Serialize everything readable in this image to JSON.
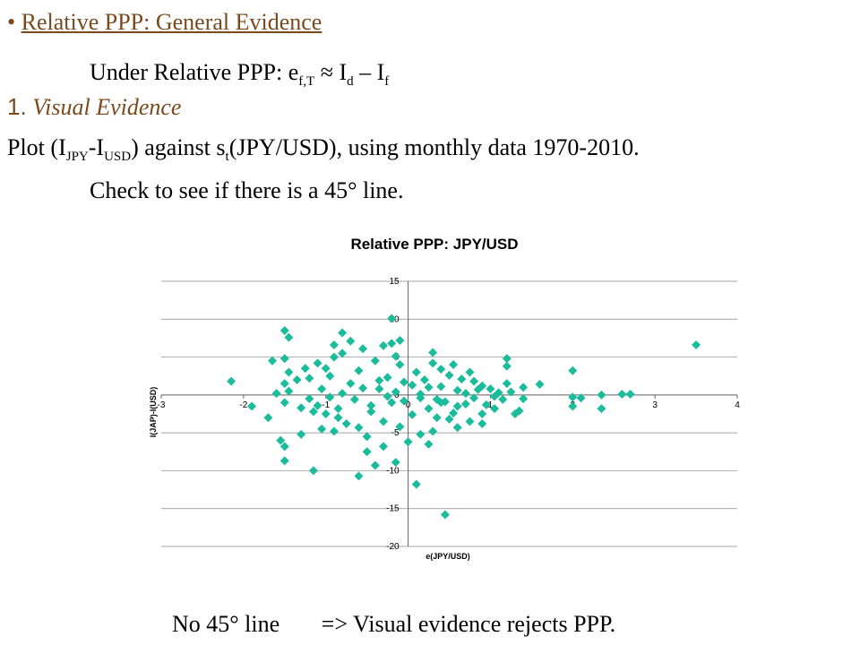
{
  "slide": {
    "bullet": "•",
    "heading": "Relative PPP: General Evidence",
    "line2_pre": "Under Relative PPP: e",
    "line2_sub1": "f,T",
    "line2_approx": " ≈ I",
    "line2_sub2": "d",
    "line2_minus": " – I",
    "line2_sub3": "f",
    "line3_num": "1.",
    "line3_text": "Visual Evidence",
    "line4_pre": "Plot (I",
    "line4_sub1": "JPY",
    "line4_mid": "-I",
    "line4_sub2": "USD",
    "line4_mid2": ") against s",
    "line4_sub3": "t",
    "line4_post": "(JPY/USD), using monthly data  1970-2010.",
    "line5": "Check to see if  there is a 45° line.",
    "conclusion_left": "No 45° line",
    "conclusion_right": "=> Visual evidence rejects PPP."
  },
  "colors": {
    "marker": "#1abc9c",
    "heading": "#7a4a1c"
  },
  "chart_data": {
    "type": "scatter",
    "title": "Relative PPP: JPY/USD",
    "xlabel": "e(JPY/USD)",
    "ylabel": "I(JAP)-I(USD)",
    "xlim": [
      -3,
      4
    ],
    "ylim": [
      -20,
      15
    ],
    "xticks": [
      "-3",
      "-2",
      "-1",
      "0",
      "1",
      "2",
      "3",
      "4"
    ],
    "yticks": [
      "15",
      "10",
      "5",
      "0",
      "-5",
      "-10",
      "-15",
      "-20"
    ],
    "grid": "horizontal",
    "series": [
      {
        "marker": "diamond",
        "points": [
          [
            3.5,
            6.6
          ],
          [
            2.7,
            0.1
          ],
          [
            2.6,
            0.1
          ],
          [
            2.35,
            0
          ],
          [
            2.35,
            -1.8
          ],
          [
            2.1,
            -0.4
          ],
          [
            2.0,
            -0.3
          ],
          [
            2.0,
            3.2
          ],
          [
            2.0,
            -1.5
          ],
          [
            1.6,
            1.4
          ],
          [
            1.4,
            1.0
          ],
          [
            1.4,
            -0.5
          ],
          [
            1.35,
            -2.1
          ],
          [
            1.2,
            4.8
          ],
          [
            1.2,
            3.8
          ],
          [
            1.25,
            0.4
          ],
          [
            1.15,
            -0.6
          ],
          [
            1.05,
            -0.2
          ],
          [
            0.9,
            -2.5
          ],
          [
            0.9,
            1.2
          ],
          [
            0.8,
            -0.4
          ],
          [
            0.75,
            -3.5
          ],
          [
            0.7,
            0.2
          ],
          [
            0.6,
            -1.5
          ],
          [
            0.5,
            -3.2
          ],
          [
            0.4,
            -1.0
          ],
          [
            0.3,
            -4.8
          ],
          [
            0.15,
            -5.2
          ],
          [
            0.1,
            -11.8
          ],
          [
            0.45,
            -15.8
          ],
          [
            0.0,
            -6.2
          ],
          [
            -0.1,
            7.2
          ],
          [
            -0.2,
            10.1
          ],
          [
            -0.3,
            6.5
          ],
          [
            -0.5,
            -7.5
          ],
          [
            -0.6,
            -10.7
          ],
          [
            -0.75,
            -3.8
          ],
          [
            -0.7,
            7.1
          ],
          [
            -0.8,
            5.5
          ],
          [
            -0.8,
            8.2
          ],
          [
            -0.9,
            5.0
          ],
          [
            -1.0,
            3.5
          ],
          [
            -1.05,
            -4.5
          ],
          [
            -1.15,
            -2.2
          ],
          [
            -1.1,
            -1.4
          ],
          [
            -1.2,
            -0.5
          ],
          [
            -1.3,
            -5.2
          ],
          [
            -1.15,
            -10.0
          ],
          [
            -1.3,
            -1.7
          ],
          [
            -1.45,
            3.0
          ],
          [
            -1.5,
            4.8
          ],
          [
            -1.5,
            -6.8
          ],
          [
            -1.55,
            -6.0
          ],
          [
            -1.6,
            0.2
          ],
          [
            -1.65,
            4.5
          ],
          [
            -1.7,
            -3.0
          ],
          [
            -1.5,
            -1.0
          ],
          [
            -1.45,
            0.5
          ],
          [
            -1.5,
            1.5
          ],
          [
            -1.2,
            2.2
          ],
          [
            -1.25,
            3.5
          ],
          [
            -1.0,
            -2.5
          ],
          [
            -0.9,
            -4.8
          ],
          [
            -1.5,
            8.5
          ],
          [
            -1.45,
            7.6
          ],
          [
            -1.5,
            -8.7
          ],
          [
            -1.9,
            -1.5
          ],
          [
            -2.15,
            1.8
          ],
          [
            -1.05,
            0.8
          ],
          [
            -0.95,
            2.5
          ],
          [
            -0.85,
            -1.8
          ],
          [
            -0.7,
            1.5
          ],
          [
            -0.6,
            3.2
          ],
          [
            -0.5,
            -5.5
          ],
          [
            -0.45,
            -2.2
          ],
          [
            -0.4,
            4.5
          ],
          [
            -0.35,
            0.8
          ],
          [
            -0.3,
            -3.5
          ],
          [
            -0.25,
            2.3
          ],
          [
            -0.2,
            -1.0
          ],
          [
            -0.15,
            5.1
          ],
          [
            -0.1,
            -4.2
          ],
          [
            -0.05,
            1.7
          ],
          [
            0.05,
            -2.6
          ],
          [
            0.1,
            3.0
          ],
          [
            0.15,
            -0.4
          ],
          [
            0.2,
            2.0
          ],
          [
            0.25,
            -1.8
          ],
          [
            0.3,
            4.2
          ],
          [
            0.35,
            -3.0
          ],
          [
            0.4,
            1.1
          ],
          [
            0.45,
            -0.9
          ],
          [
            0.5,
            2.6
          ],
          [
            0.55,
            -2.4
          ],
          [
            0.6,
            0.6
          ],
          [
            0.65,
            2.1
          ],
          [
            0.7,
            -1.2
          ],
          [
            0.8,
            1.8
          ],
          [
            0.85,
            0.7
          ],
          [
            0.95,
            -1.3
          ],
          [
            1.0,
            0.8
          ],
          [
            1.1,
            0.3
          ],
          [
            1.2,
            1.5
          ],
          [
            -0.95,
            -0.3
          ],
          [
            -0.8,
            0.2
          ],
          [
            -0.65,
            -0.6
          ],
          [
            -0.55,
            0.9
          ],
          [
            -0.45,
            -1.4
          ],
          [
            -0.35,
            1.9
          ],
          [
            -0.25,
            -0.2
          ],
          [
            -0.15,
            0.4
          ],
          [
            -0.05,
            -0.8
          ],
          [
            0.05,
            1.3
          ],
          [
            0.15,
            0.1
          ],
          [
            0.25,
            1.0
          ],
          [
            0.35,
            -0.6
          ],
          [
            -0.3,
            -6.8
          ],
          [
            -0.6,
            -4.3
          ],
          [
            -0.85,
            -3.0
          ],
          [
            0.6,
            -4.3
          ],
          [
            0.9,
            -3.8
          ],
          [
            0.25,
            -6.5
          ],
          [
            -0.15,
            -8.9
          ],
          [
            -0.4,
            -9.3
          ],
          [
            1.05,
            -1.8
          ],
          [
            1.3,
            -2.5
          ],
          [
            0.75,
            3.0
          ],
          [
            0.55,
            4.0
          ],
          [
            -0.1,
            4.0
          ],
          [
            -0.55,
            6.1
          ],
          [
            -0.9,
            6.6
          ],
          [
            -1.35,
            2.0
          ],
          [
            -1.1,
            4.2
          ],
          [
            -0.2,
            6.8
          ],
          [
            0.3,
            5.6
          ],
          [
            0.4,
            3.4
          ]
        ]
      }
    ]
  }
}
